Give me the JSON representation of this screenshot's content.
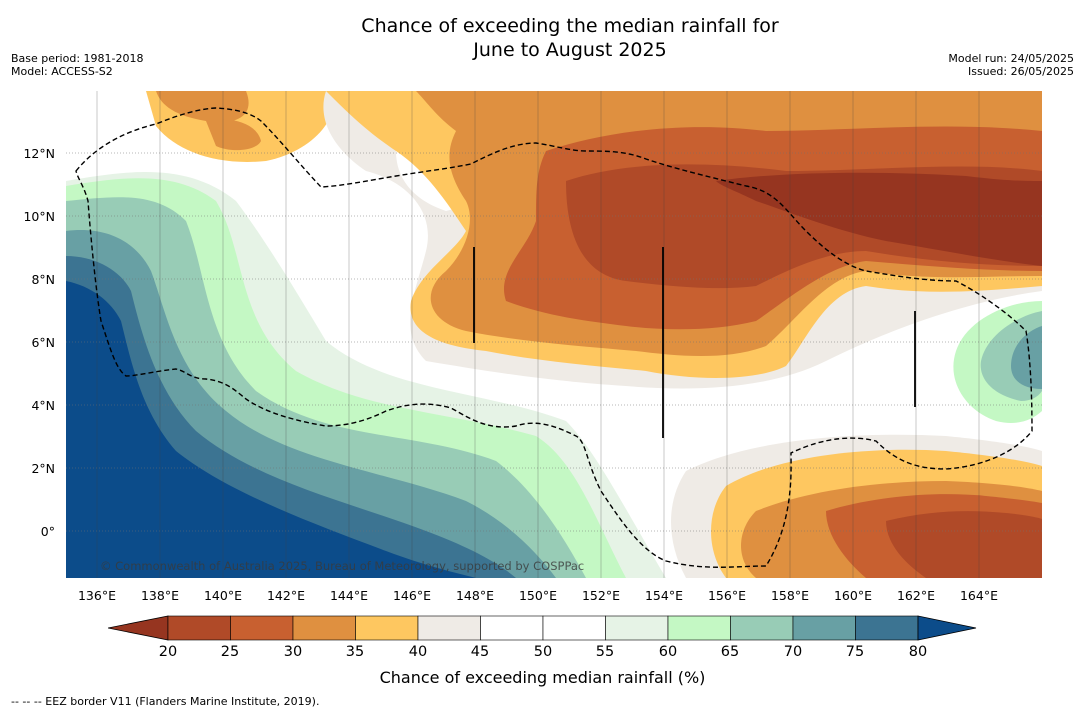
{
  "title": {
    "line1": "Chance of exceeding the median rainfall for",
    "line2": "June to August 2025"
  },
  "meta_left": {
    "base_period": "Base period: 1981-2018",
    "model": "Model: ACCESS-S2"
  },
  "meta_right": {
    "model_run": "Model run: 24/05/2025",
    "issued": "Issued: 26/05/2025"
  },
  "credit": "© Commonwealth of Australia 2025, Bureau of Meteorology, supported by COSPPac",
  "latitude_labels": [
    "12°N",
    "10°N",
    "8°N",
    "6°N",
    "4°N",
    "2°N",
    "0°"
  ],
  "longitude_labels": [
    "136°E",
    "138°E",
    "140°E",
    "142°E",
    "144°E",
    "146°E",
    "148°E",
    "150°E",
    "152°E",
    "154°E",
    "156°E",
    "158°E",
    "160°E",
    "162°E",
    "164°E"
  ],
  "colorbar": {
    "ticks": [
      "20",
      "25",
      "30",
      "35",
      "40",
      "45",
      "50",
      "55",
      "60",
      "65",
      "70",
      "75",
      "80"
    ],
    "colors": [
      "#963520",
      "#b04a28",
      "#c86030",
      "#df9040",
      "#fec760",
      "#efebe6",
      "#ffffff",
      "#ffffff",
      "#e6f3e6",
      "#c4f8c4",
      "#98ccb6",
      "#68a0a4",
      "#3c7492",
      "#0c4c8a"
    ],
    "label": "Chance of exceeding median rainfall (%)"
  },
  "footer": "--  --  -- EEZ border V11 (Flanders Marine Institute, 2019)."
}
